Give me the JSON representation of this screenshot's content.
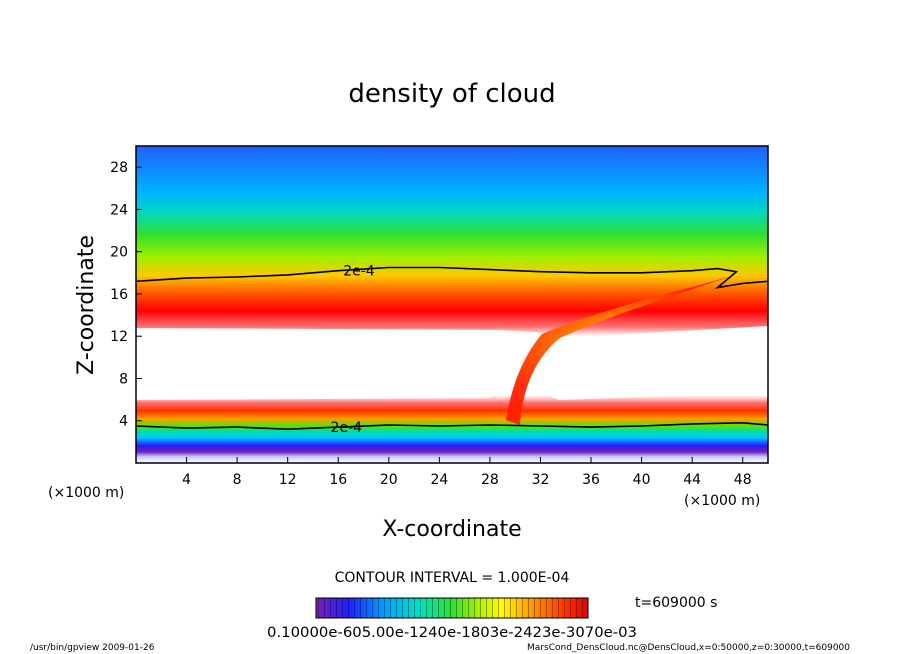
{
  "chart_data": {
    "type": "heatmap",
    "title": "density of cloud",
    "xlabel": "X-coordinate",
    "ylabel": "Z-coordinate",
    "x_unit": "(×1000 m)",
    "y_unit": "(×1000 m)",
    "xlim": [
      0,
      50
    ],
    "ylim": [
      0,
      30
    ],
    "x_ticks": [
      4,
      8,
      12,
      16,
      20,
      24,
      28,
      32,
      36,
      40,
      44,
      48
    ],
    "y_ticks": [
      4,
      8,
      12,
      16,
      20,
      24,
      28
    ],
    "contour_labels": [
      {
        "text": "2e-4",
        "x": 17.5,
        "z": 18.2
      },
      {
        "text": "2e-4",
        "x": 16.5,
        "z": 3.4
      }
    ],
    "upper_contour_2e4": {
      "x": [
        0,
        4,
        8,
        12,
        16,
        20,
        24,
        28,
        32,
        36,
        40,
        44,
        46,
        47.5,
        46,
        48,
        50
      ],
      "z": [
        17.2,
        17.5,
        17.6,
        17.8,
        18.2,
        18.5,
        18.5,
        18.3,
        18.1,
        18.0,
        18.0,
        18.2,
        18.4,
        18.1,
        16.6,
        17.0,
        17.2
      ]
    },
    "lower_contour_2e4": {
      "x": [
        0,
        4,
        8,
        12,
        16,
        20,
        24,
        28,
        32,
        36,
        40,
        44,
        48,
        50
      ],
      "z": [
        3.5,
        3.3,
        3.4,
        3.2,
        3.4,
        3.6,
        3.5,
        3.6,
        3.5,
        3.4,
        3.5,
        3.7,
        3.8,
        3.6
      ]
    },
    "contour_interval": "CONTOUR INTERVAL = 1.000E-04",
    "time_label": "t=609000 s",
    "colorbar_labels": "0.10000e-605.00e-1240e-1803e-2423e-3070e-03",
    "colorbar_range": [
      0.0,
      0.0007
    ],
    "colormap": [
      "#7a1fb4",
      "#2020ff",
      "#00a0ff",
      "#00e0c0",
      "#30e030",
      "#b0f000",
      "#ffff00",
      "#ff9000",
      "#ff3000",
      "#e80000"
    ]
  },
  "footer": {
    "left": "/usr/bin/gpview   2009-01-26",
    "right": "MarsCond_DensCloud.nc@DensCloud,x=0:50000,z=0:30000,t=609000"
  }
}
